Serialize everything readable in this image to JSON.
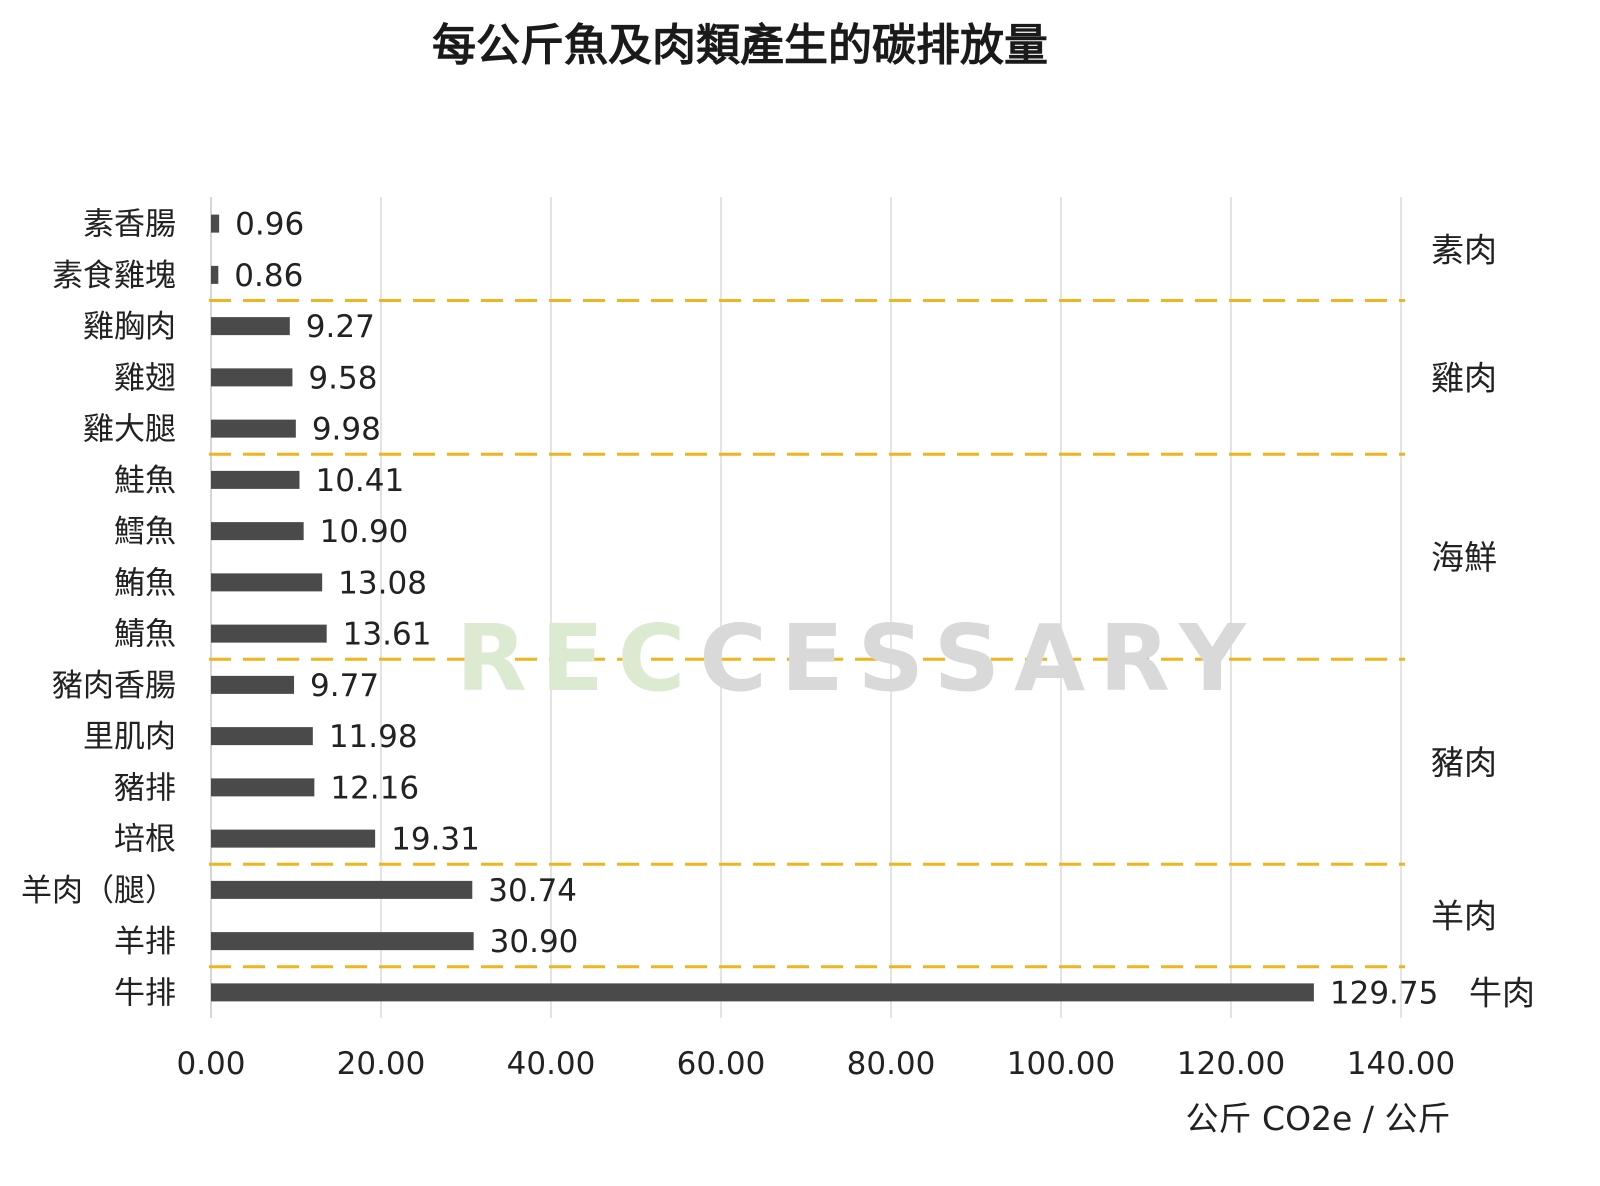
{
  "chart_data": {
    "type": "bar",
    "orientation": "horizontal",
    "title": "每公斤魚及肉類產生的碳排放量",
    "xlabel": "公斤 CO2e / 公斤",
    "ylabel": "",
    "xlim": [
      0,
      140
    ],
    "x_ticks": [
      "0.00",
      "20.00",
      "40.00",
      "60.00",
      "80.00",
      "100.00",
      "120.00",
      "140.00"
    ],
    "grid": "vertical",
    "bar_color": "#4a4a4a",
    "categories": [
      "素香腸",
      "素食雞塊",
      "雞胸肉",
      "雞翅",
      "雞大腿",
      "鮭魚",
      "鱈魚",
      "鮪魚",
      "鯖魚",
      "豬肉香腸",
      "里肌肉",
      "豬排",
      "培根",
      "羊肉（腿）",
      "羊排",
      "牛排"
    ],
    "values": [
      0.96,
      0.86,
      9.27,
      9.58,
      9.98,
      10.41,
      10.9,
      13.08,
      13.61,
      9.77,
      11.98,
      12.16,
      19.31,
      30.74,
      30.9,
      129.75
    ],
    "value_labels": [
      "0.96",
      "0.86",
      "9.27",
      "9.58",
      "9.98",
      "10.41",
      "10.90",
      "13.08",
      "13.61",
      "9.77",
      "11.98",
      "12.16",
      "19.31",
      "30.74",
      "30.90",
      "129.75"
    ],
    "groups": [
      {
        "label": "素肉",
        "start": 0,
        "end": 1
      },
      {
        "label": "雞肉",
        "start": 2,
        "end": 4
      },
      {
        "label": "海鮮",
        "start": 5,
        "end": 8
      },
      {
        "label": "豬肉",
        "start": 9,
        "end": 12
      },
      {
        "label": "羊肉",
        "start": 13,
        "end": 14
      },
      {
        "label": "牛肉",
        "start": 15,
        "end": 15
      }
    ],
    "group_divider_color": "#f0b41e"
  },
  "watermark": {
    "text_green": "REC",
    "text_gray": "CESSARY",
    "color_green": "#dcead2",
    "color_gray": "#d9d9d9"
  }
}
